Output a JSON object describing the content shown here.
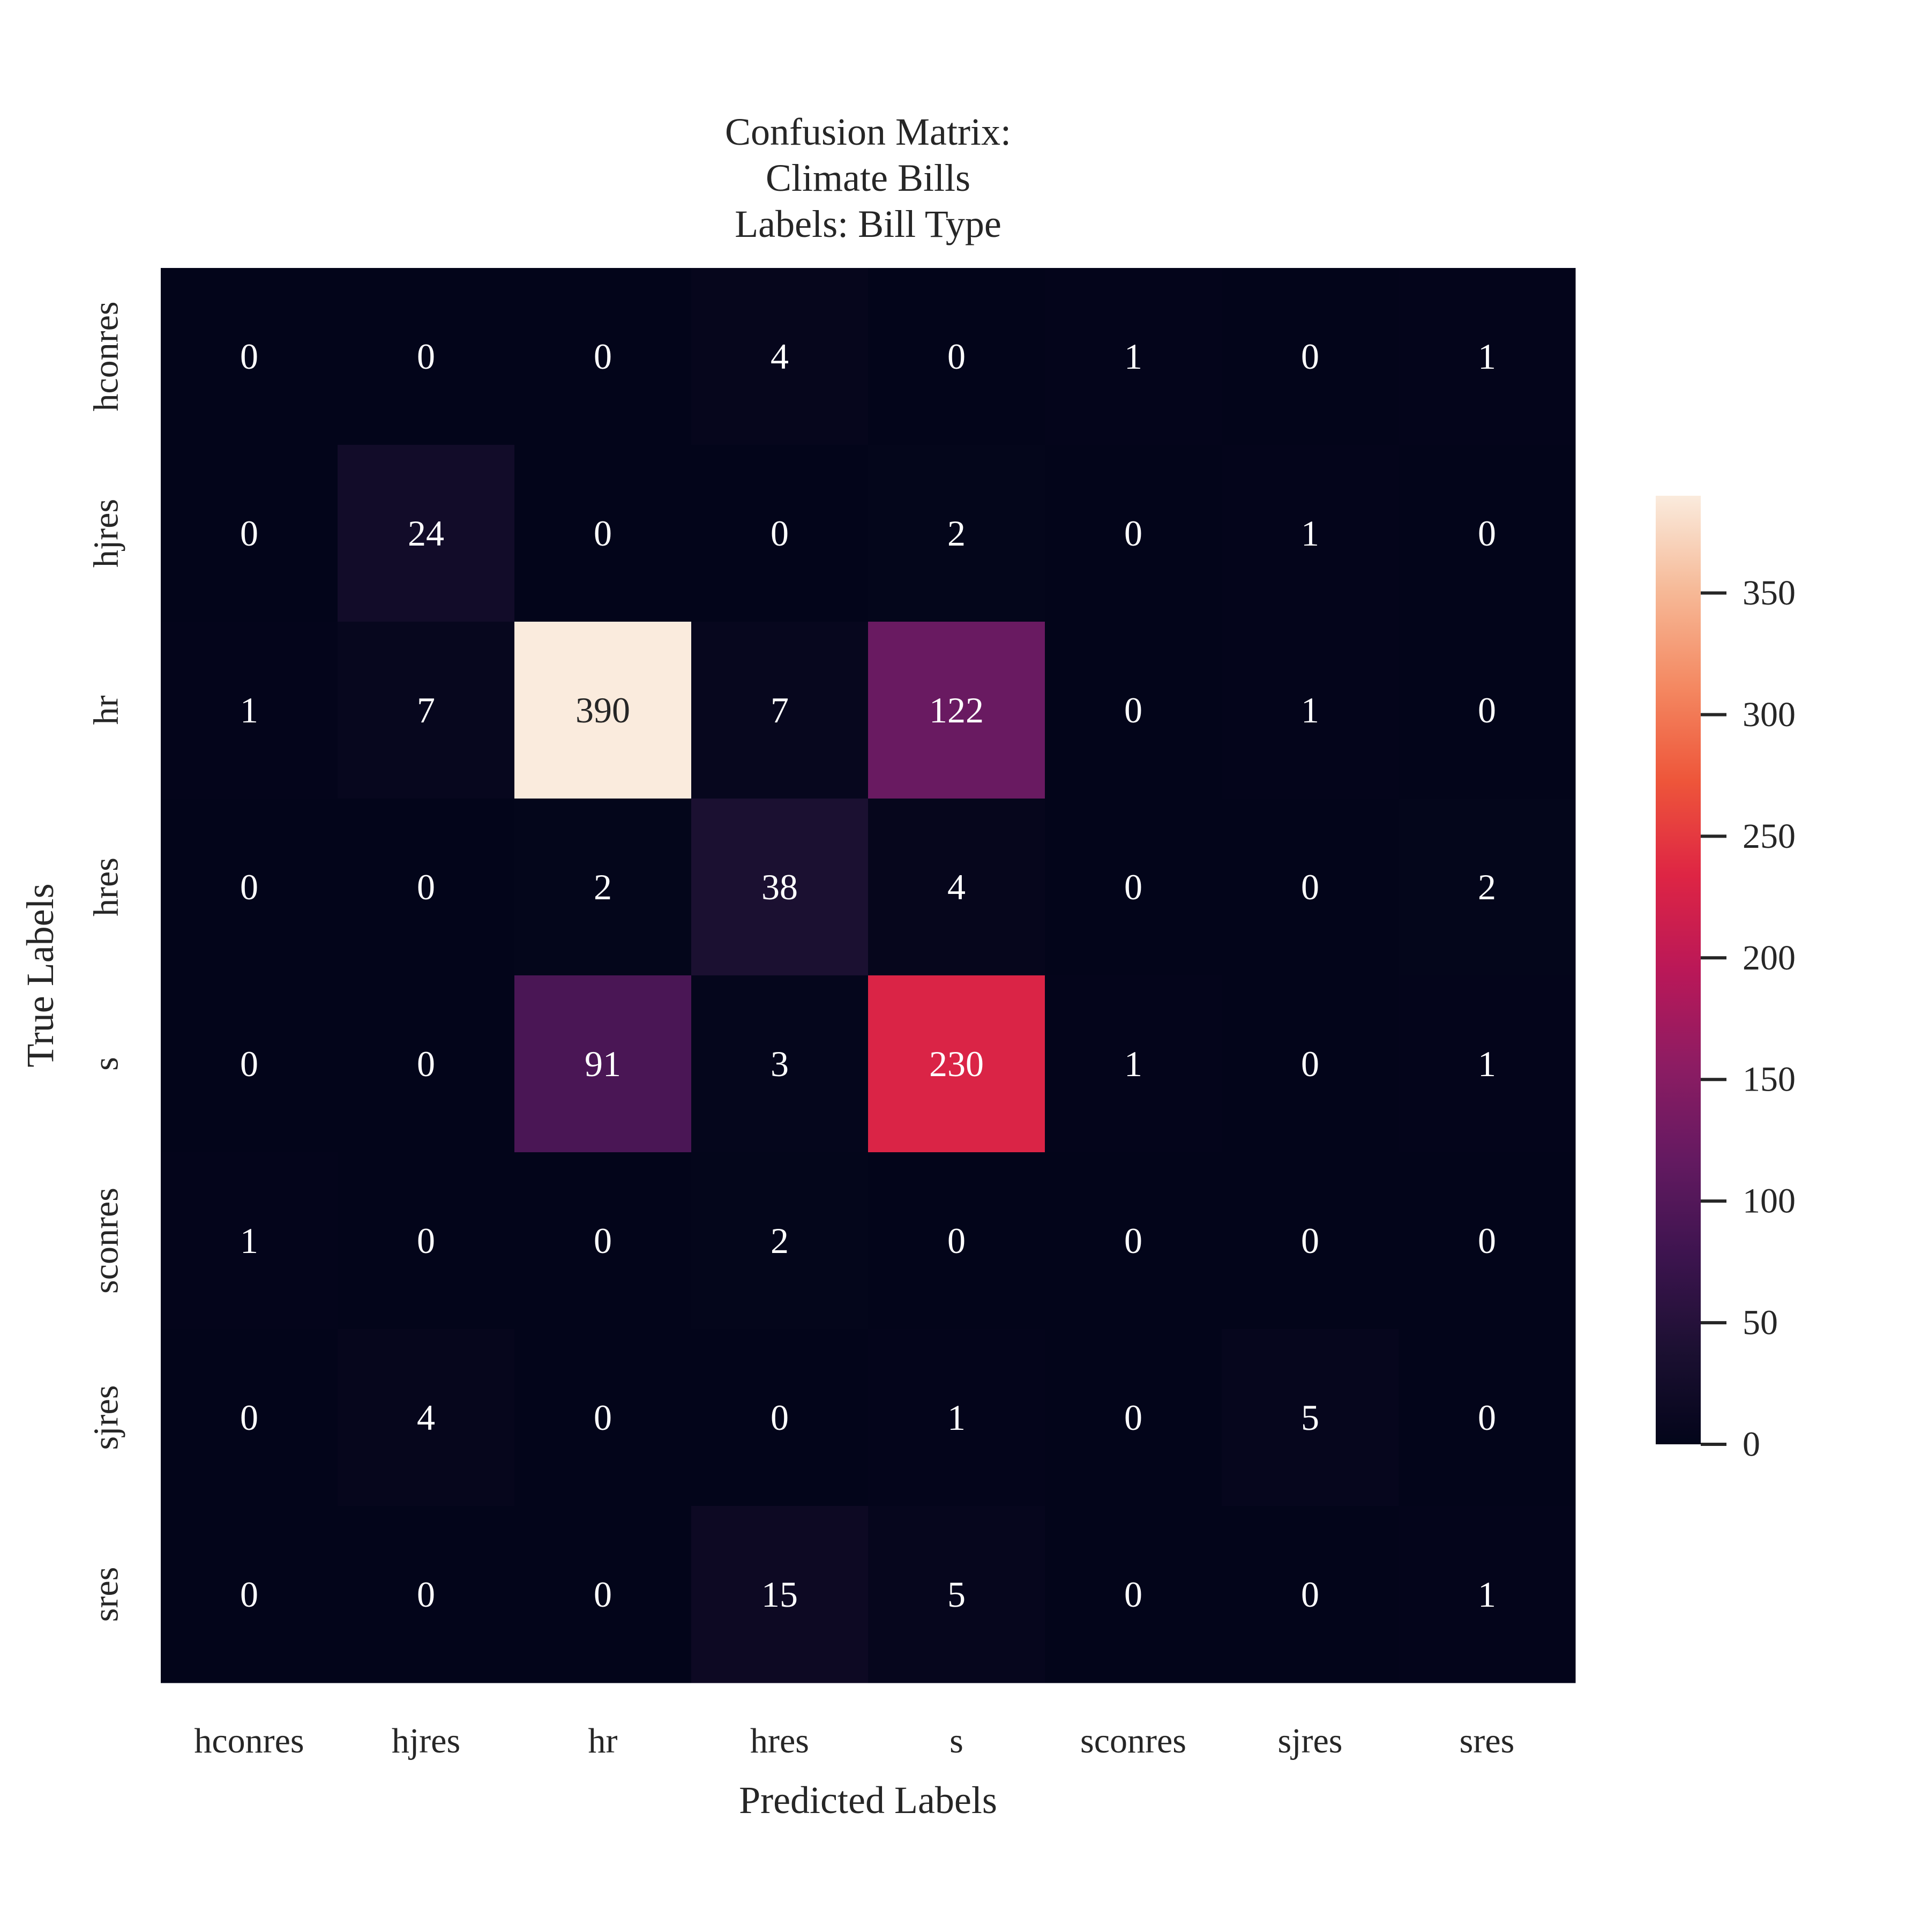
{
  "chart_data": {
    "type": "heatmap",
    "title_lines": [
      "Confusion Matrix:",
      "Climate Bills",
      "Labels: Bill Type"
    ],
    "xlabel": "Predicted Labels",
    "ylabel": "True Labels",
    "x_categories": [
      "hconres",
      "hjres",
      "hr",
      "hres",
      "s",
      "sconres",
      "sjres",
      "sres"
    ],
    "y_categories": [
      "hconres",
      "hjres",
      "hr",
      "hres",
      "s",
      "sconres",
      "sjres",
      "sres"
    ],
    "values": [
      [
        0,
        0,
        0,
        4,
        0,
        1,
        0,
        1
      ],
      [
        0,
        24,
        0,
        0,
        2,
        0,
        1,
        0
      ],
      [
        1,
        7,
        390,
        7,
        122,
        0,
        1,
        0
      ],
      [
        0,
        0,
        2,
        38,
        4,
        0,
        0,
        2
      ],
      [
        0,
        0,
        91,
        3,
        230,
        1,
        0,
        1
      ],
      [
        1,
        0,
        0,
        2,
        0,
        0,
        0,
        0
      ],
      [
        0,
        4,
        0,
        0,
        1,
        0,
        5,
        0
      ],
      [
        0,
        0,
        0,
        15,
        5,
        0,
        0,
        1
      ]
    ],
    "colorbar": {
      "range": [
        0,
        390
      ],
      "ticks": [
        0,
        50,
        100,
        150,
        200,
        250,
        300,
        350
      ],
      "colormap": "rocket",
      "low_color": "#03051a",
      "high_color": "#faebdd"
    },
    "grid": false
  }
}
